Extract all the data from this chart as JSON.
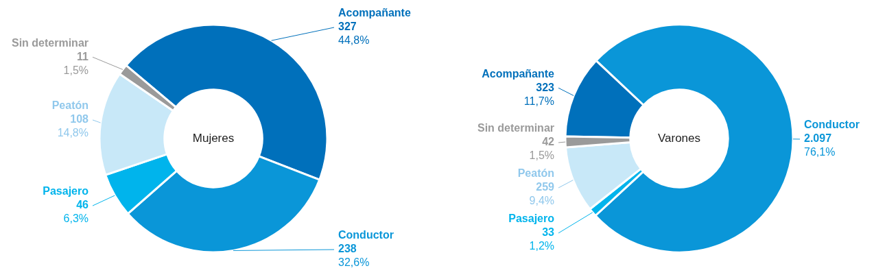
{
  "chart_data": [
    {
      "type": "donut",
      "title": "Mujeres",
      "categories": [
        "Acompañante",
        "Conductor",
        "Pasajero",
        "Peatón",
        "Sin determinar"
      ],
      "values": [
        327,
        238,
        46,
        108,
        11
      ],
      "colors": [
        "#0070bb",
        "#0a96d8",
        "#00b4ec",
        "#c8e8f8",
        "#9a9a9a"
      ],
      "value_labels": [
        "327\n44,8%",
        "238\n32,6%",
        "46\n6,3%",
        "108\n14,8%",
        "11\n1,5%"
      ]
    },
    {
      "type": "donut",
      "title": "Varones",
      "categories": [
        "Acompañante",
        "Conductor",
        "Pasajero",
        "Peatón",
        "Sin determinar"
      ],
      "values": [
        323,
        2097,
        33,
        259,
        42
      ],
      "colors": [
        "#0070bb",
        "#0a96d8",
        "#00b4ec",
        "#c8e8f8",
        "#9a9a9a"
      ],
      "value_labels": [
        "323\n11,7%",
        "2.097\n76,1%",
        "33\n1,2%",
        "259\n9,4%",
        "42\n1,5%"
      ]
    }
  ]
}
